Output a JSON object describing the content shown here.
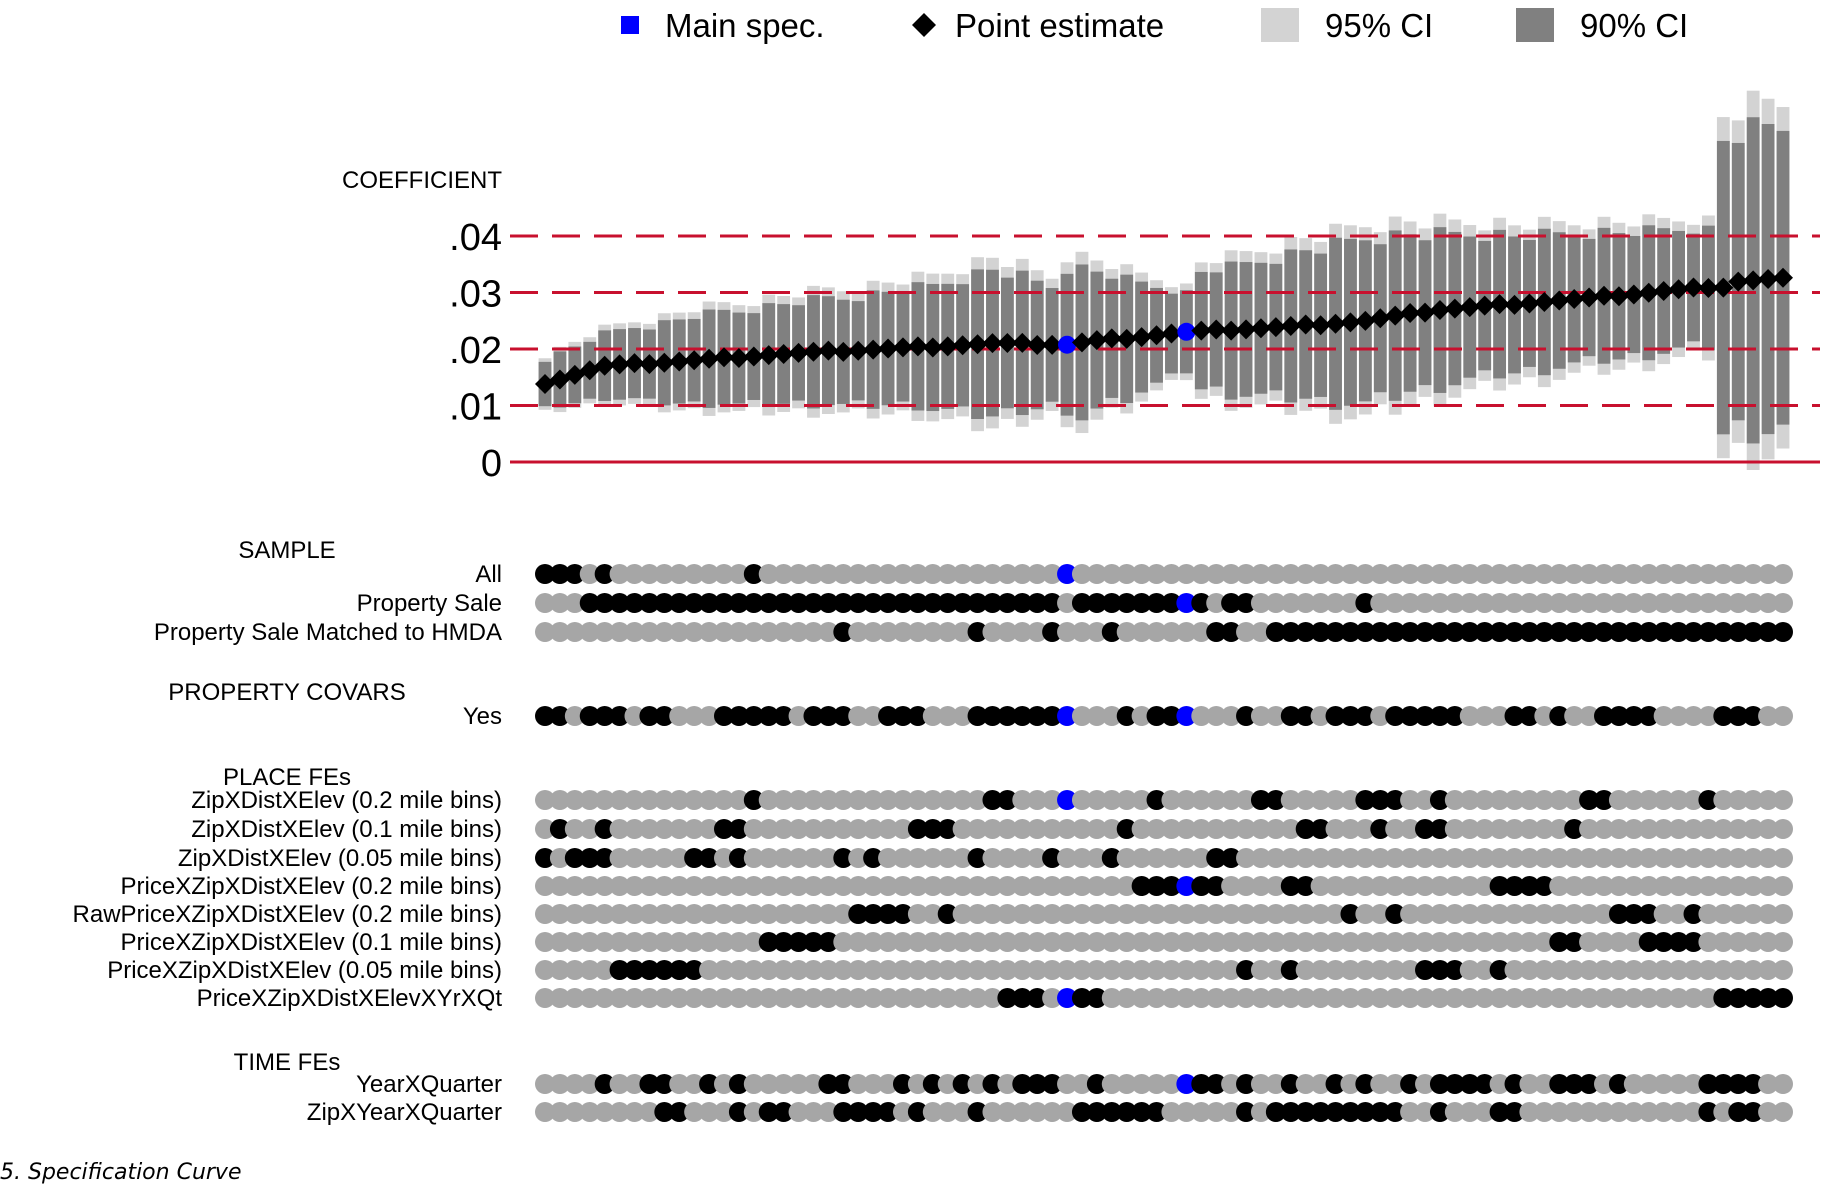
{
  "caption": "5. Specification Curve",
  "colors": {
    "main_spec": "#0000ff",
    "point": "#000000",
    "ci95": "#d3d3d3",
    "ci90": "#808080",
    "refline": "#c8102e",
    "dot_off": "#a6a6a6",
    "dot_on": "#000000"
  },
  "legend": [
    {
      "label": "Main spec.",
      "marker": "square",
      "color": "#0000ff"
    },
    {
      "label": "Point estimate",
      "marker": "diamond",
      "color": "#000000"
    },
    {
      "label": "95% CI",
      "marker": "square",
      "color": "#d3d3d3"
    },
    {
      "label": "90% CI",
      "marker": "square",
      "color": "#808080"
    }
  ],
  "chart_data": {
    "type": "specification-curve",
    "ylabel": "COEFFICIENT",
    "y_ticks": [
      0,
      0.01,
      0.02,
      0.03,
      0.04
    ],
    "y_tick_labels": [
      "0",
      ".01",
      ".02",
      ".03",
      ".04"
    ],
    "ylim": [
      -0.002,
      0.063
    ],
    "reference_lines": [
      0.01,
      0.02,
      0.03,
      0.04
    ],
    "zero_line": 0,
    "n_specs": 84,
    "main_specs": [
      35,
      43
    ],
    "point_anchors": [
      [
        0,
        0.014
      ],
      [
        4,
        0.017
      ],
      [
        10,
        0.018
      ],
      [
        15,
        0.019
      ],
      [
        30,
        0.021
      ],
      [
        35,
        0.0208
      ],
      [
        37,
        0.0215
      ],
      [
        39,
        0.022
      ],
      [
        43,
        0.023
      ],
      [
        50,
        0.024
      ],
      [
        55,
        0.025
      ],
      [
        60,
        0.027
      ],
      [
        70,
        0.029
      ],
      [
        78,
        0.031
      ],
      [
        79,
        0.031
      ],
      [
        80,
        0.032
      ],
      [
        83,
        0.0325
      ]
    ],
    "ci95_half_anchors": [
      [
        0,
        0.005
      ],
      [
        10,
        0.009
      ],
      [
        25,
        0.012
      ],
      [
        30,
        0.015
      ],
      [
        34,
        0.012
      ],
      [
        35,
        0.016
      ],
      [
        40,
        0.011
      ],
      [
        43,
        0.008
      ],
      [
        44,
        0.012
      ],
      [
        55,
        0.017
      ],
      [
        65,
        0.014
      ],
      [
        78,
        0.012
      ],
      [
        79,
        0.03
      ],
      [
        83,
        0.031
      ]
    ],
    "ci90_half_ratio": 0.86,
    "groups": [
      {
        "title": "SAMPLE",
        "rows": [
          {
            "label": "All",
            "on": [
              0,
              1,
              2,
              4,
              14,
              35
            ]
          },
          {
            "label": "Property Sale",
            "on": [
              3,
              4,
              5,
              6,
              7,
              8,
              9,
              10,
              11,
              12,
              13,
              14,
              15,
              16,
              17,
              18,
              19,
              20,
              21,
              22,
              23,
              24,
              25,
              26,
              27,
              28,
              29,
              30,
              31,
              32,
              33,
              34,
              36,
              37,
              38,
              39,
              40,
              41,
              42,
              43,
              44,
              46,
              47,
              55
            ]
          },
          {
            "label": "Property Sale Matched to HMDA",
            "on": [
              20,
              29,
              34,
              38,
              45,
              46,
              49,
              50,
              51,
              52,
              53,
              54,
              55,
              56,
              57,
              58,
              59,
              60,
              61,
              62,
              63,
              64,
              65,
              66,
              67,
              68,
              69,
              70,
              71,
              72,
              73,
              74,
              75,
              76,
              77,
              78,
              79,
              80,
              81,
              82,
              83
            ]
          }
        ]
      },
      {
        "title": "PROPERTY COVARS",
        "rows": [
          {
            "label": "Yes",
            "on": [
              0,
              1,
              3,
              4,
              5,
              7,
              8,
              12,
              13,
              14,
              15,
              16,
              18,
              19,
              20,
              23,
              24,
              25,
              29,
              30,
              31,
              32,
              33,
              34,
              35,
              39,
              41,
              42,
              43,
              47,
              50,
              51,
              53,
              54,
              55,
              57,
              58,
              59,
              60,
              61,
              65,
              66,
              68,
              71,
              72,
              73,
              74,
              79,
              80,
              81
            ]
          }
        ]
      },
      {
        "title": "PLACE FEs",
        "rows": [
          {
            "label": "ZipXDistXElev (0.2 mile bins)",
            "on": [
              14,
              30,
              31,
              35,
              41,
              48,
              49,
              55,
              56,
              57,
              60,
              70,
              71,
              78
            ]
          },
          {
            "label": "ZipXDistXElev (0.1 mile bins)",
            "on": [
              1,
              4,
              12,
              13,
              25,
              26,
              27,
              39,
              51,
              52,
              56,
              59,
              60,
              69
            ]
          },
          {
            "label": "ZipXDistXElev (0.05 mile bins)",
            "on": [
              0,
              2,
              3,
              4,
              10,
              11,
              13,
              20,
              22,
              29,
              34,
              38,
              45,
              46
            ]
          },
          {
            "label": "PriceXZipXDistXElev (0.2 mile bins)",
            "on": [
              40,
              41,
              42,
              43,
              44,
              45,
              50,
              51,
              64,
              65,
              66,
              67
            ]
          },
          {
            "label": "RawPriceXZipXDistXElev (0.2 mile bins)",
            "on": [
              21,
              22,
              23,
              24,
              27,
              54,
              57,
              72,
              73,
              74,
              77
            ]
          },
          {
            "label": "PriceXZipXDistXElev (0.1 mile bins)",
            "on": [
              15,
              16,
              17,
              18,
              19,
              68,
              69,
              74,
              75,
              76,
              77
            ]
          },
          {
            "label": "PriceXZipXDistXElev (0.05 mile bins)",
            "on": [
              5,
              6,
              7,
              8,
              9,
              10,
              47,
              50,
              59,
              60,
              61,
              64
            ]
          },
          {
            "label": "PriceXZipXDistXElevXYrXQt",
            "on": [
              31,
              32,
              33,
              35,
              36,
              37,
              79,
              80,
              81,
              82,
              83
            ]
          }
        ]
      },
      {
        "title": "TIME FEs",
        "rows": [
          {
            "label": "YearXQuarter",
            "on": [
              4,
              7,
              8,
              11,
              13,
              19,
              20,
              24,
              26,
              28,
              30,
              32,
              33,
              34,
              37,
              43,
              44,
              45,
              47,
              50,
              53,
              55,
              58,
              60,
              61,
              62,
              63,
              65,
              68,
              69,
              70,
              72,
              78,
              79,
              80,
              81
            ]
          },
          {
            "label": "ZipXYearXQuarter",
            "on": [
              8,
              9,
              13,
              15,
              16,
              20,
              21,
              22,
              23,
              25,
              29,
              36,
              37,
              38,
              39,
              40,
              41,
              47,
              49,
              50,
              51,
              52,
              53,
              54,
              55,
              56,
              57,
              60,
              64,
              65,
              78,
              80,
              81
            ]
          }
        ]
      }
    ]
  }
}
